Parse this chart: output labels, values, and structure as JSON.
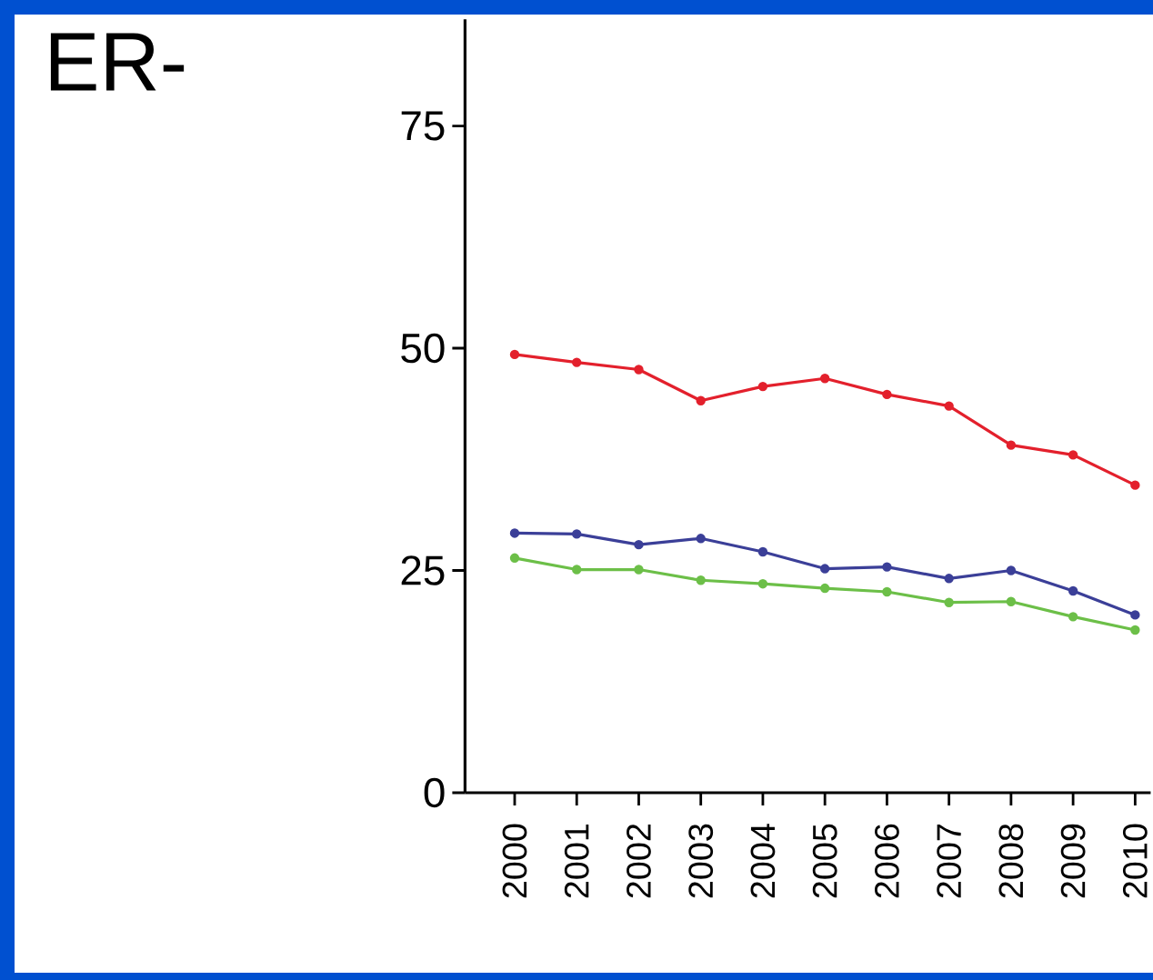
{
  "chart_data": {
    "type": "line",
    "title": "ER-",
    "categories": [
      "2000",
      "2001",
      "2002",
      "2003",
      "2004",
      "2005",
      "2006",
      "2007",
      "2008",
      "2009",
      "2010"
    ],
    "series": [
      {
        "color": "#e3202c",
        "values": [
          49.3,
          48.4,
          47.6,
          44.1,
          45.7,
          46.6,
          44.8,
          43.5,
          39.1,
          38.0,
          34.6
        ]
      },
      {
        "color": "#3b3f98",
        "values": [
          29.2,
          29.1,
          27.9,
          28.6,
          27.1,
          25.2,
          25.4,
          24.1,
          25.0,
          22.7,
          20.0
        ]
      },
      {
        "color": "#6cbf48",
        "values": [
          26.4,
          25.1,
          25.1,
          23.9,
          23.5,
          23.0,
          22.6,
          21.4,
          21.5,
          19.8,
          18.3
        ]
      }
    ],
    "ylim": [
      0,
      87
    ],
    "yticks": [
      0,
      25,
      50,
      75
    ],
    "grid": false,
    "marker": "circle",
    "line_style": "solid"
  }
}
